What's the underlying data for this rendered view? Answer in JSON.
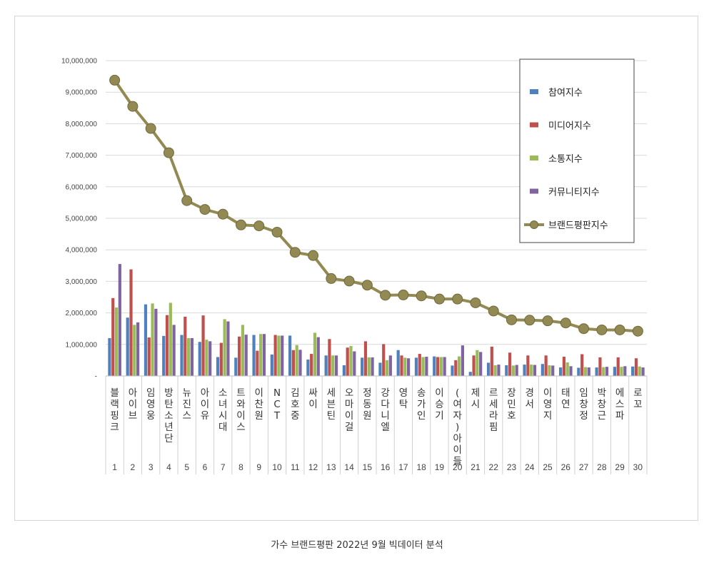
{
  "caption": "가수 브랜드평판  2022년 9월 빅데이터 분석",
  "chart_data": {
    "type": "bar",
    "ylim": [
      0,
      10000000
    ],
    "y_ticks": [
      "-",
      "1,000,000",
      "2,000,000",
      "3,000,000",
      "4,000,000",
      "5,000,000",
      "6,000,000",
      "7,000,000",
      "8,000,000",
      "9,000,000",
      "10,000,000"
    ],
    "grid": true,
    "legend_position": "top-right",
    "categories": [
      "블랙핑크",
      "아이브",
      "임영웅",
      "방탄소년단",
      "뉴진스",
      "아이유",
      "소녀시대",
      "트와이스",
      "이찬원",
      "NCT",
      "김호중",
      "싸이",
      "세븐틴",
      "오마이걸",
      "정동원",
      "강다니엘",
      "영탁",
      "송가인",
      "이승기",
      "(여자)아이들",
      "제시",
      "르세라핌",
      "장민호",
      "경서",
      "이영지",
      "태연",
      "임창정",
      "박창근",
      "에스파",
      "로꼬"
    ],
    "ranks": [
      "1",
      "2",
      "3",
      "4",
      "5",
      "6",
      "7",
      "8",
      "9",
      "10",
      "11",
      "12",
      "13",
      "14",
      "15",
      "16",
      "17",
      "18",
      "19",
      "20",
      "21",
      "22",
      "23",
      "24",
      "25",
      "26",
      "27",
      "28",
      "29",
      "30"
    ],
    "series": [
      {
        "name": "참여지수",
        "type": "bar",
        "color": "#4f81bd",
        "values": [
          1200000,
          1850000,
          2270000,
          1270000,
          1300000,
          1080000,
          600000,
          580000,
          1300000,
          680000,
          1280000,
          520000,
          650000,
          340000,
          580000,
          420000,
          820000,
          580000,
          620000,
          330000,
          130000,
          420000,
          340000,
          360000,
          380000,
          270000,
          260000,
          270000,
          290000,
          300000
        ]
      },
      {
        "name": "미디어지수",
        "type": "bar",
        "color": "#c0504d",
        "values": [
          2470000,
          3380000,
          1220000,
          1930000,
          1880000,
          1920000,
          1050000,
          1250000,
          800000,
          1300000,
          820000,
          700000,
          1170000,
          900000,
          1100000,
          1010000,
          650000,
          700000,
          600000,
          500000,
          650000,
          930000,
          740000,
          650000,
          650000,
          610000,
          690000,
          590000,
          590000,
          560000
        ]
      },
      {
        "name": "소통지수",
        "type": "bar",
        "color": "#9bbb59",
        "values": [
          2170000,
          1620000,
          2300000,
          2320000,
          1200000,
          1150000,
          1800000,
          1620000,
          1330000,
          1280000,
          980000,
          1370000,
          650000,
          950000,
          590000,
          500000,
          580000,
          600000,
          600000,
          620000,
          820000,
          340000,
          330000,
          360000,
          340000,
          430000,
          280000,
          280000,
          290000,
          300000
        ]
      },
      {
        "name": "커뮤니티지수",
        "type": "bar",
        "color": "#8064a2",
        "values": [
          3550000,
          1700000,
          2130000,
          1620000,
          1200000,
          1100000,
          1730000,
          1310000,
          1330000,
          1280000,
          830000,
          1230000,
          650000,
          780000,
          590000,
          650000,
          560000,
          610000,
          600000,
          970000,
          760000,
          360000,
          350000,
          350000,
          330000,
          310000,
          270000,
          290000,
          310000,
          270000
        ]
      },
      {
        "name": "브랜드평판지수",
        "type": "line",
        "color": "#938953",
        "values": [
          9380000,
          8550000,
          7850000,
          7080000,
          5560000,
          5280000,
          5130000,
          4790000,
          4760000,
          4560000,
          3920000,
          3820000,
          3090000,
          3010000,
          2880000,
          2560000,
          2570000,
          2540000,
          2440000,
          2440000,
          2320000,
          2060000,
          1780000,
          1770000,
          1750000,
          1680000,
          1500000,
          1460000,
          1460000,
          1420000
        ]
      }
    ]
  }
}
